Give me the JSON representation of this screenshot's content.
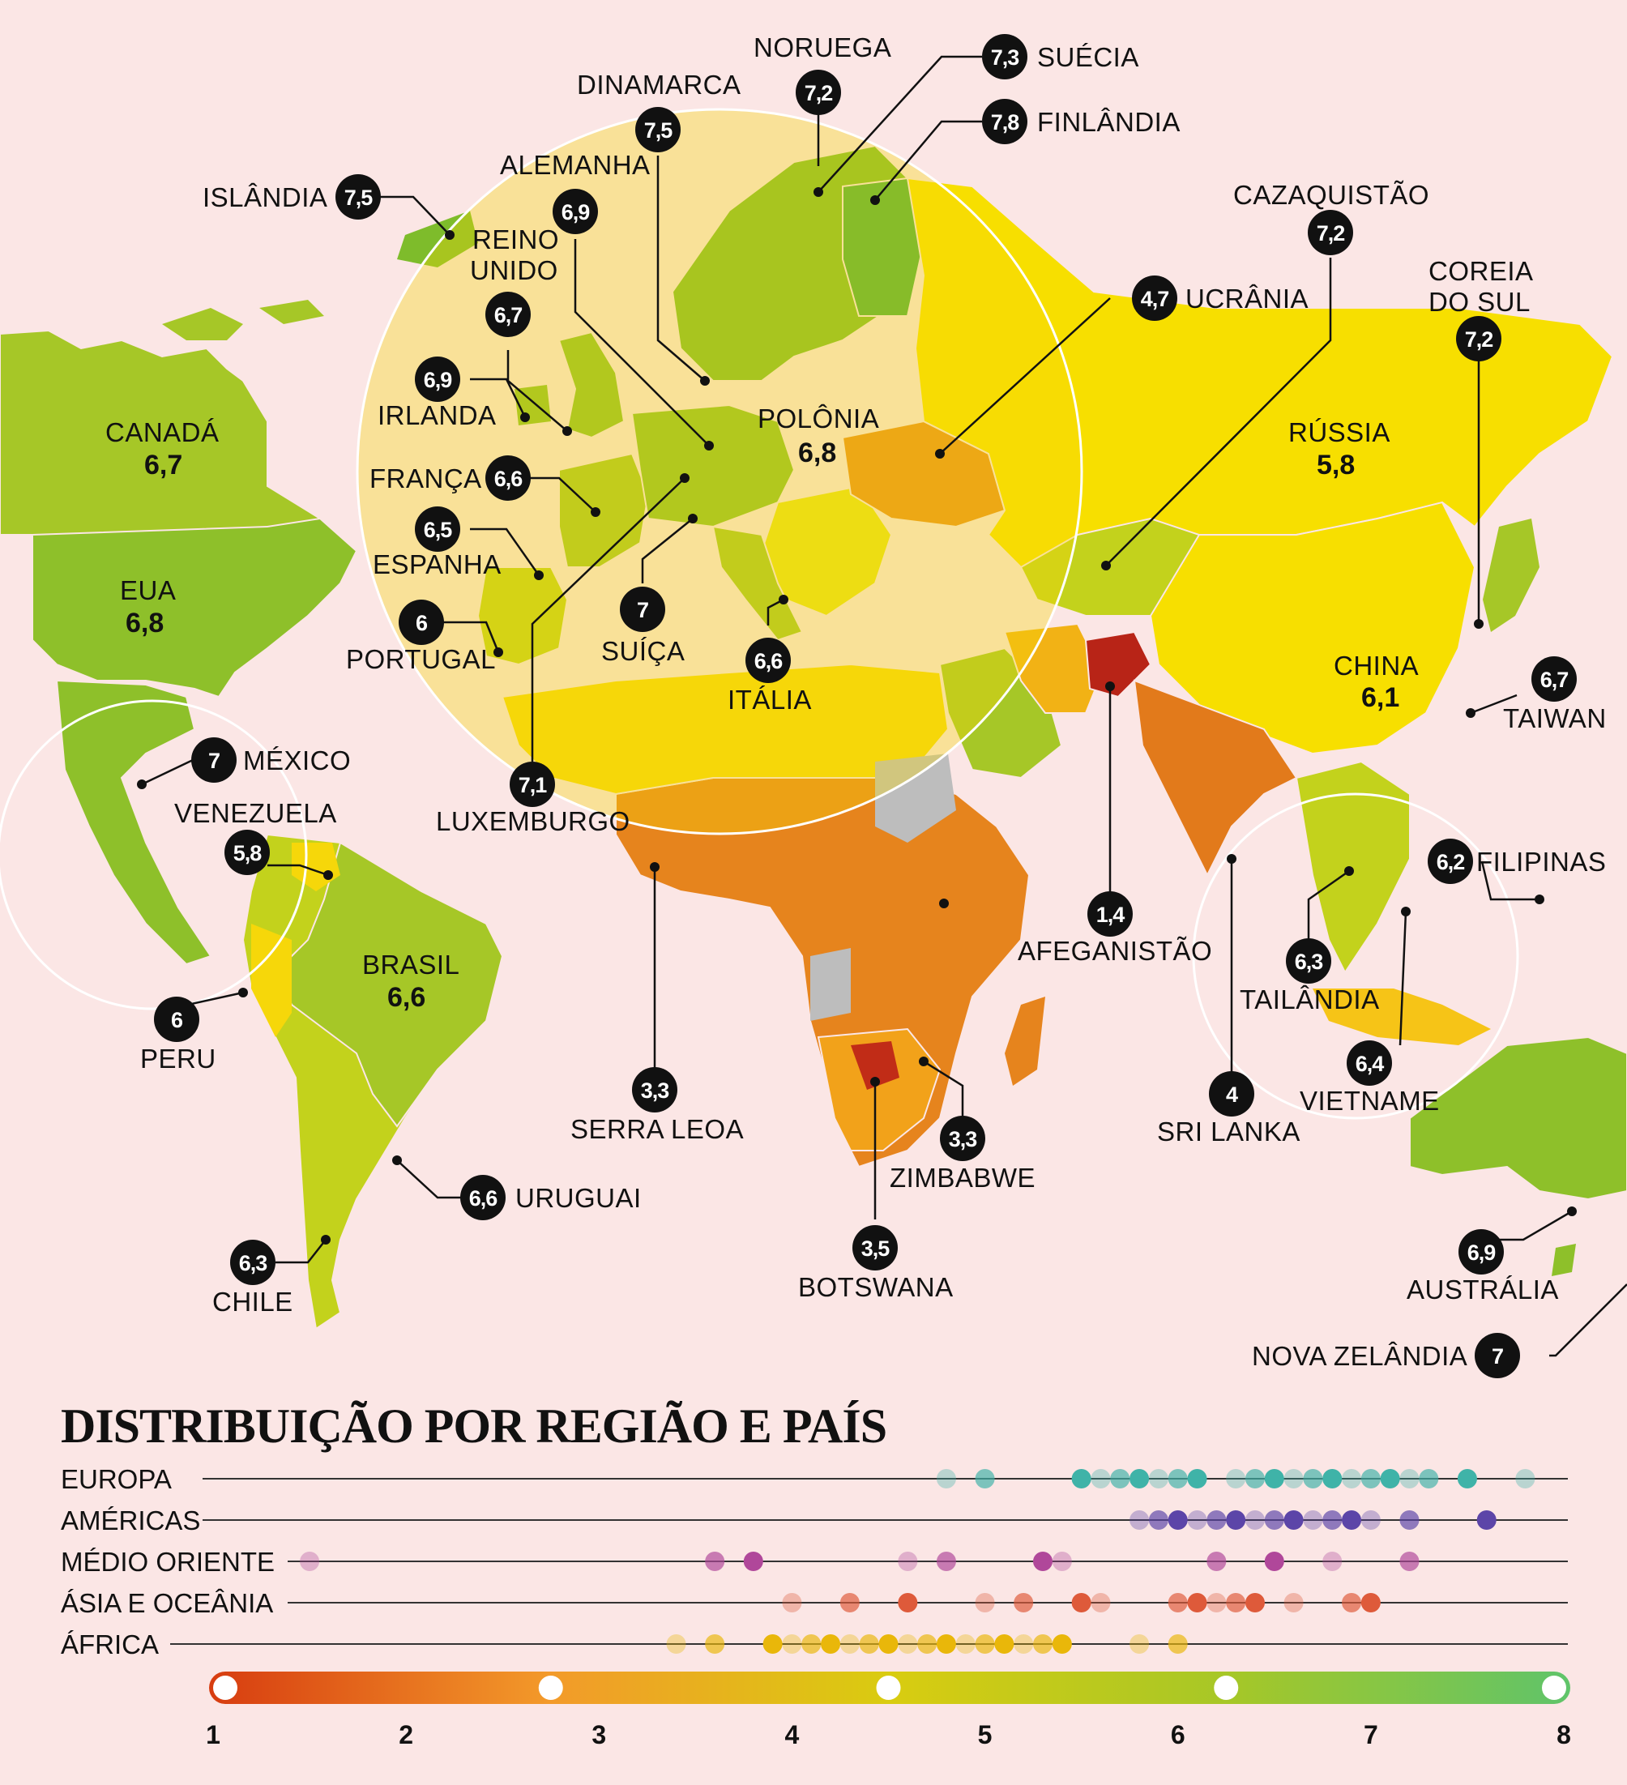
{
  "colors": {
    "background": "#fbe6e5",
    "scale": [
      "#c9261b",
      "#e95a1c",
      "#f39a2a",
      "#f6c417",
      "#e8d91a",
      "#c3d21c",
      "#8ec02a",
      "#5fb74a",
      "#3aae4b"
    ],
    "no_data": "#bdbdbd",
    "row_europa": "#3fb3a8",
    "row_americas": "#5c45a8",
    "row_medio_oriente": "#b0479a",
    "row_asia": "#de5a3a",
    "row_africa": "#e9b70a"
  },
  "labels": {
    "noruega": {
      "name": "NORUEGA",
      "value": "7,2"
    },
    "suecia": {
      "name": "SUÉCIA",
      "value": "7,3"
    },
    "dinamarca": {
      "name": "DINAMARCA",
      "value": "7,5"
    },
    "finlandia": {
      "name": "FINLÂNDIA",
      "value": "7,8"
    },
    "alemanha": {
      "name": "ALEMANHA",
      "value": "6,9"
    },
    "islandia": {
      "name": "ISLÂNDIA",
      "value": "7,5"
    },
    "reino_unido": {
      "name1": "REINO",
      "name2": "UNIDO",
      "value": "6,7"
    },
    "irlanda": {
      "name": "IRLANDA",
      "value": "6,9"
    },
    "polonia": {
      "name": "POLÔNIA",
      "value": "6,8"
    },
    "franca": {
      "name": "FRANÇA",
      "value": "6,6"
    },
    "espanha": {
      "name": "ESPANHA",
      "value": "6,5"
    },
    "portugal": {
      "name": "PORTUGAL",
      "value": "6"
    },
    "suica": {
      "name": "SUÍÇA",
      "value": "7"
    },
    "italia": {
      "name": "ITÁLIA",
      "value": "6,6"
    },
    "luxemburgo": {
      "name": "LUXEMBURGO",
      "value": "7,1"
    },
    "ucrania": {
      "name": "UCRÂNIA",
      "value": "4,7"
    },
    "cazaquistao": {
      "name": "CAZAQUISTÃO",
      "value": "7,2"
    },
    "coreia": {
      "name1": "COREIA",
      "name2": "DO SUL",
      "value": "7,2"
    },
    "russia": {
      "name": "RÚSSIA",
      "value": "5,8"
    },
    "china": {
      "name": "CHINA",
      "value": "6,1"
    },
    "taiwan": {
      "name": "TAIWAN",
      "value": "6,7"
    },
    "canada": {
      "name": "CANADÁ",
      "value": "6,7"
    },
    "eua": {
      "name": "EUA",
      "value": "6,8"
    },
    "mexico": {
      "name": "MÉXICO",
      "value": "7"
    },
    "venezuela": {
      "name": "VENEZUELA",
      "value": "5,8"
    },
    "brasil": {
      "name": "BRASIL",
      "value": "6,6"
    },
    "peru": {
      "name": "PERU",
      "value": "6"
    },
    "uruguai": {
      "name": "URUGUAI",
      "value": "6,6"
    },
    "chile": {
      "name": "CHILE",
      "value": "6,3"
    },
    "serra_leoa": {
      "name": "SERRA LEOA",
      "value": "3,3"
    },
    "zimbabwe": {
      "name": "ZIMBABWE",
      "value": "3,3"
    },
    "botswana": {
      "name": "BOTSWANA",
      "value": "3,5"
    },
    "afeganistao": {
      "name": "AFEGANISTÃO",
      "value": "1,4"
    },
    "sri_lanka": {
      "name": "SRI LANKA",
      "value": "4"
    },
    "filipinas": {
      "name": "FILIPINAS",
      "value": "6,2"
    },
    "tailandia": {
      "name": "TAILÂNDIA",
      "value": "6,3"
    },
    "vietname": {
      "name": "VIETNAME",
      "value": "6,4"
    },
    "australia": {
      "name": "AUSTRÁLIA",
      "value": "6,9"
    },
    "nova_zelandia": {
      "name": "NOVA ZELÂNDIA",
      "value": "7"
    }
  },
  "distribution": {
    "title": "DISTRIBUIÇÃO POR REGIÃO E PAÍS",
    "axis_ticks": [
      "1",
      "2",
      "3",
      "4",
      "5",
      "6",
      "7",
      "8"
    ],
    "axis_min": 1,
    "axis_max": 8,
    "rows": [
      {
        "name": "EUROPA",
        "values": [
          4.8,
          5.0,
          5.5,
          5.6,
          5.7,
          5.8,
          5.9,
          6.0,
          6.1,
          6.3,
          6.4,
          6.5,
          6.6,
          6.7,
          6.8,
          6.9,
          7.0,
          7.1,
          7.2,
          7.3,
          7.5,
          7.8
        ]
      },
      {
        "name": "AMÉRICAS",
        "values": [
          5.8,
          5.9,
          6.0,
          6.1,
          6.2,
          6.3,
          6.4,
          6.5,
          6.6,
          6.7,
          6.8,
          6.9,
          7.0,
          7.2,
          7.6
        ]
      },
      {
        "name": "MÉDIO ORIENTE",
        "values": [
          1.5,
          3.6,
          3.8,
          4.6,
          4.8,
          5.3,
          5.4,
          6.2,
          6.5,
          6.8,
          7.2
        ]
      },
      {
        "name": "ÁSIA E OCEÂNIA",
        "values": [
          4.0,
          4.3,
          4.6,
          5.0,
          5.2,
          5.5,
          5.6,
          6.0,
          6.1,
          6.2,
          6.3,
          6.4,
          6.6,
          6.9,
          7.0
        ]
      },
      {
        "name": "ÁFRICA",
        "values": [
          3.4,
          3.6,
          3.9,
          4.0,
          4.1,
          4.2,
          4.3,
          4.4,
          4.5,
          4.6,
          4.7,
          4.8,
          4.9,
          5.0,
          5.1,
          5.2,
          5.3,
          5.4,
          5.8,
          6.0
        ]
      }
    ]
  }
}
